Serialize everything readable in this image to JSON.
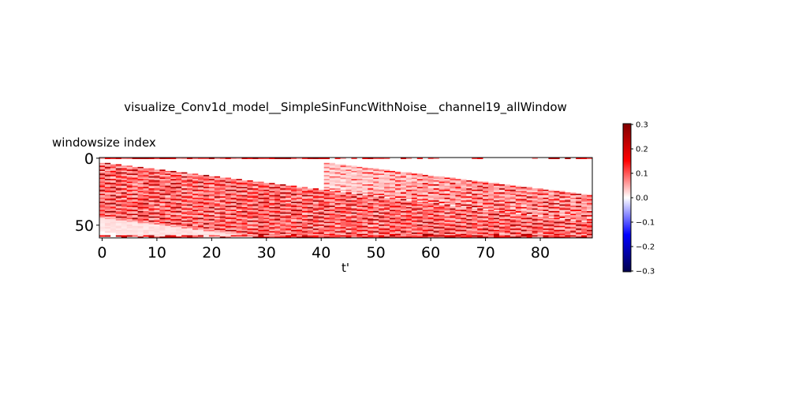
{
  "chart_data": {
    "type": "heatmap",
    "title": "visualize_Conv1d_model__SimpleSinFuncWithNoise__channel19_allWindow",
    "xlabel": "t'",
    "ylabel": "windowsize index",
    "x_range": [
      0,
      89
    ],
    "y_range": [
      0,
      59
    ],
    "x_ticks": [
      "0",
      "10",
      "20",
      "30",
      "40",
      "50",
      "60",
      "70",
      "80"
    ],
    "y_ticks": [
      "0",
      "50"
    ],
    "colorbar": {
      "range": [
        -0.3,
        0.3
      ],
      "ticks": [
        "0.3",
        "0.2",
        "0.1",
        "0.0",
        "−0.1",
        "−0.2",
        "−0.3"
      ],
      "colormap": "seismic"
    },
    "pattern": {
      "description": "diagonal bands of positive values; rows 0-59, cols 0-89",
      "band_slope_rows_per_col": 0.5,
      "top_left_band_rows": [
        5,
        45
      ],
      "bottom_right_band_start_col": 45,
      "edge_rows": [
        0,
        58,
        59
      ]
    }
  }
}
